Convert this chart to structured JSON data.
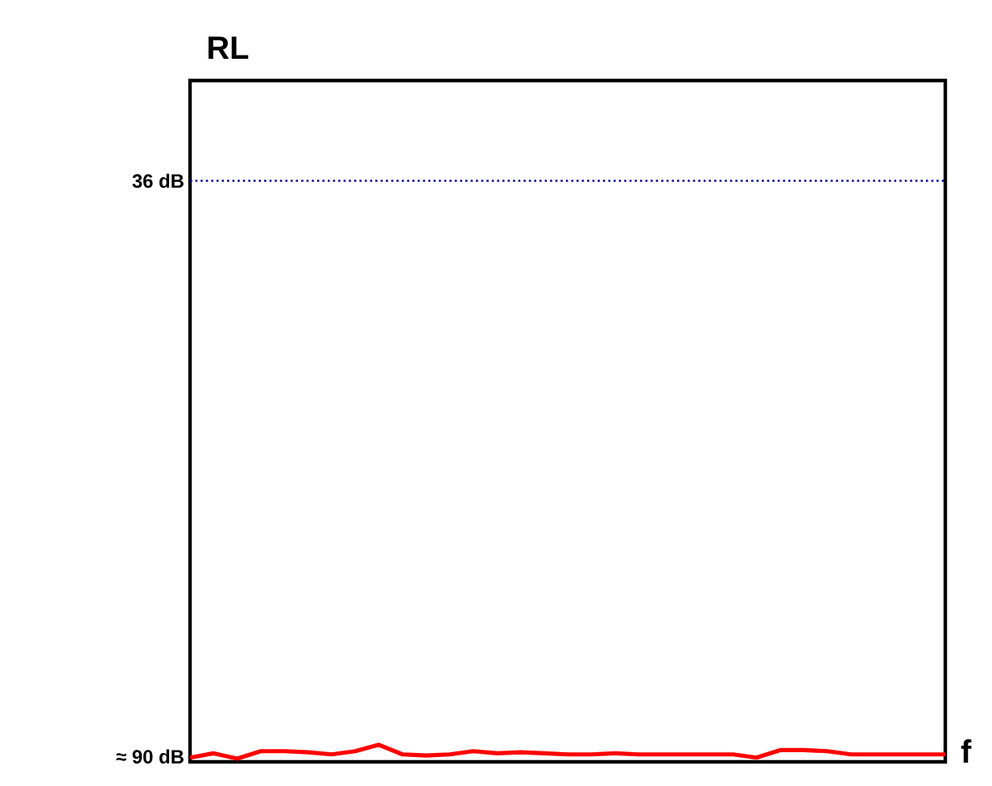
{
  "chart_data": {
    "type": "line",
    "title": "RL",
    "xlabel": "f",
    "categories": [
      null,
      null,
      null,
      null,
      null,
      null,
      null,
      null,
      null,
      null,
      null,
      null,
      null,
      null,
      null,
      null,
      null,
      null,
      null,
      null,
      null,
      null,
      null,
      null,
      null,
      null,
      null,
      null,
      null,
      null,
      null,
      null,
      null
    ],
    "series": [
      {
        "color": "#ff0000",
        "values": [
          90.1,
          89.7,
          90.2,
          89.5,
          89.5,
          89.6,
          89.8,
          89.5,
          88.9,
          89.8,
          89.9,
          89.8,
          89.5,
          89.7,
          89.6,
          89.7,
          89.8,
          89.8,
          89.7,
          89.8,
          89.8,
          89.8,
          89.8,
          89.8,
          90.1,
          89.4,
          89.4,
          89.5,
          89.8,
          89.8,
          89.8,
          89.8,
          89.8
        ]
      }
    ],
    "ylim": [
      90.5,
      26.6
    ],
    "yticks": [
      {
        "value": 36,
        "label": "36 dB"
      },
      {
        "value": 90,
        "label": "≈ 90 dB"
      }
    ],
    "tick_labels": "y",
    "marker": "none",
    "line_style": "solid",
    "ref_lines": [
      {
        "axis": "y",
        "value": 36,
        "color": "#0000a0",
        "line_style": "dotted"
      }
    ]
  }
}
